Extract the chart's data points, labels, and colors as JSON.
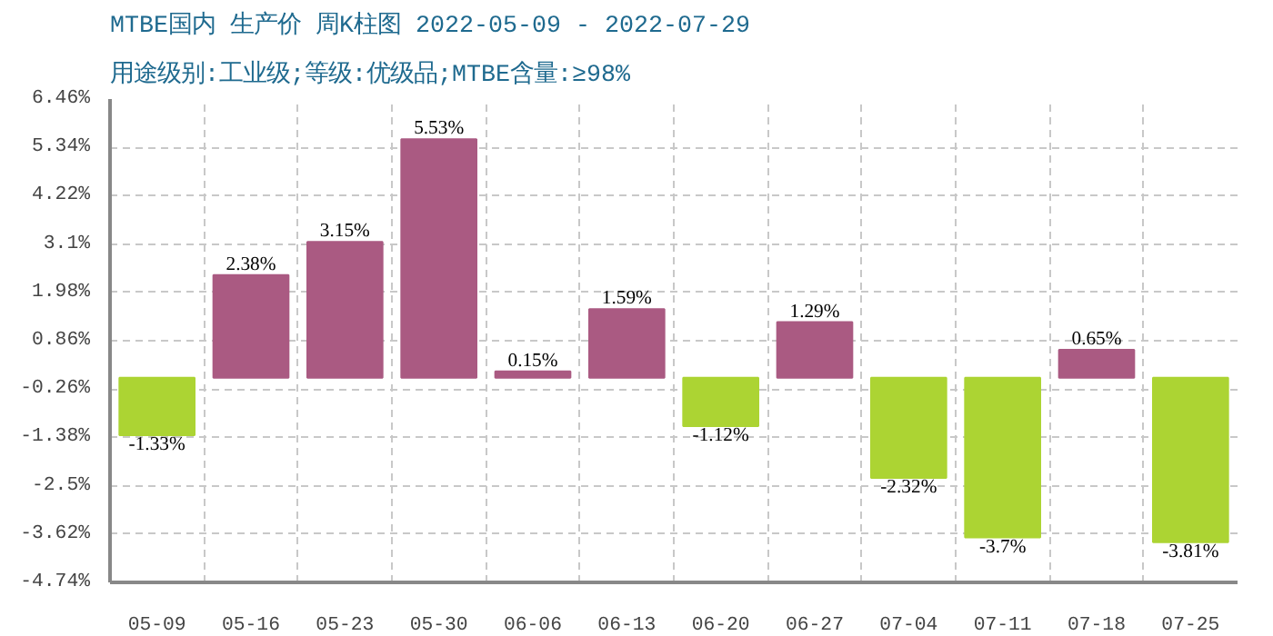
{
  "chart_data": {
    "type": "bar",
    "title": "MTBE国内 生产价 周K柱图 2022-05-09 - 2022-07-29",
    "subtitle": "用途级别:工业级;等级:优级品;MTBE含量:≥98%",
    "categories": [
      "05-09",
      "05-16",
      "05-23",
      "05-30",
      "06-06",
      "06-13",
      "06-20",
      "06-27",
      "07-04",
      "07-11",
      "07-18",
      "07-25"
    ],
    "values": [
      -1.33,
      2.38,
      3.15,
      5.53,
      0.15,
      1.59,
      -1.12,
      1.29,
      -2.32,
      -3.7,
      0.65,
      -3.81
    ],
    "value_labels": [
      "-1.33%",
      "2.38%",
      "3.15%",
      "5.53%",
      "0.15%",
      "1.59%",
      "-1.12%",
      "1.29%",
      "-2.32%",
      "-3.7%",
      "0.65%",
      "-3.81%"
    ],
    "colors": [
      "#acd433",
      "#aa5a82",
      "#aa5a82",
      "#aa5a82",
      "#aa5a82",
      "#aa5a82",
      "#acd433",
      "#aa5a82",
      "#acd433",
      "#acd433",
      "#aa5a82",
      "#acd433"
    ],
    "ylim": [
      -4.74,
      6.46
    ],
    "yticks": [
      {
        "value": -4.74,
        "label": "-4.74%"
      },
      {
        "value": -3.62,
        "label": "-3.62%"
      },
      {
        "value": -2.5,
        "label": "-2.5%"
      },
      {
        "value": -1.38,
        "label": "-1.38%"
      },
      {
        "value": -0.26,
        "label": "-0.26%"
      },
      {
        "value": 0.86,
        "label": "0.86%"
      },
      {
        "value": 1.98,
        "label": "1.98%"
      },
      {
        "value": 3.1,
        "label": "3.1%"
      },
      {
        "value": 4.22,
        "label": "4.22%"
      },
      {
        "value": 5.34,
        "label": "5.34%"
      },
      {
        "value": 6.46,
        "label": "6.46%"
      }
    ],
    "grid": true
  }
}
